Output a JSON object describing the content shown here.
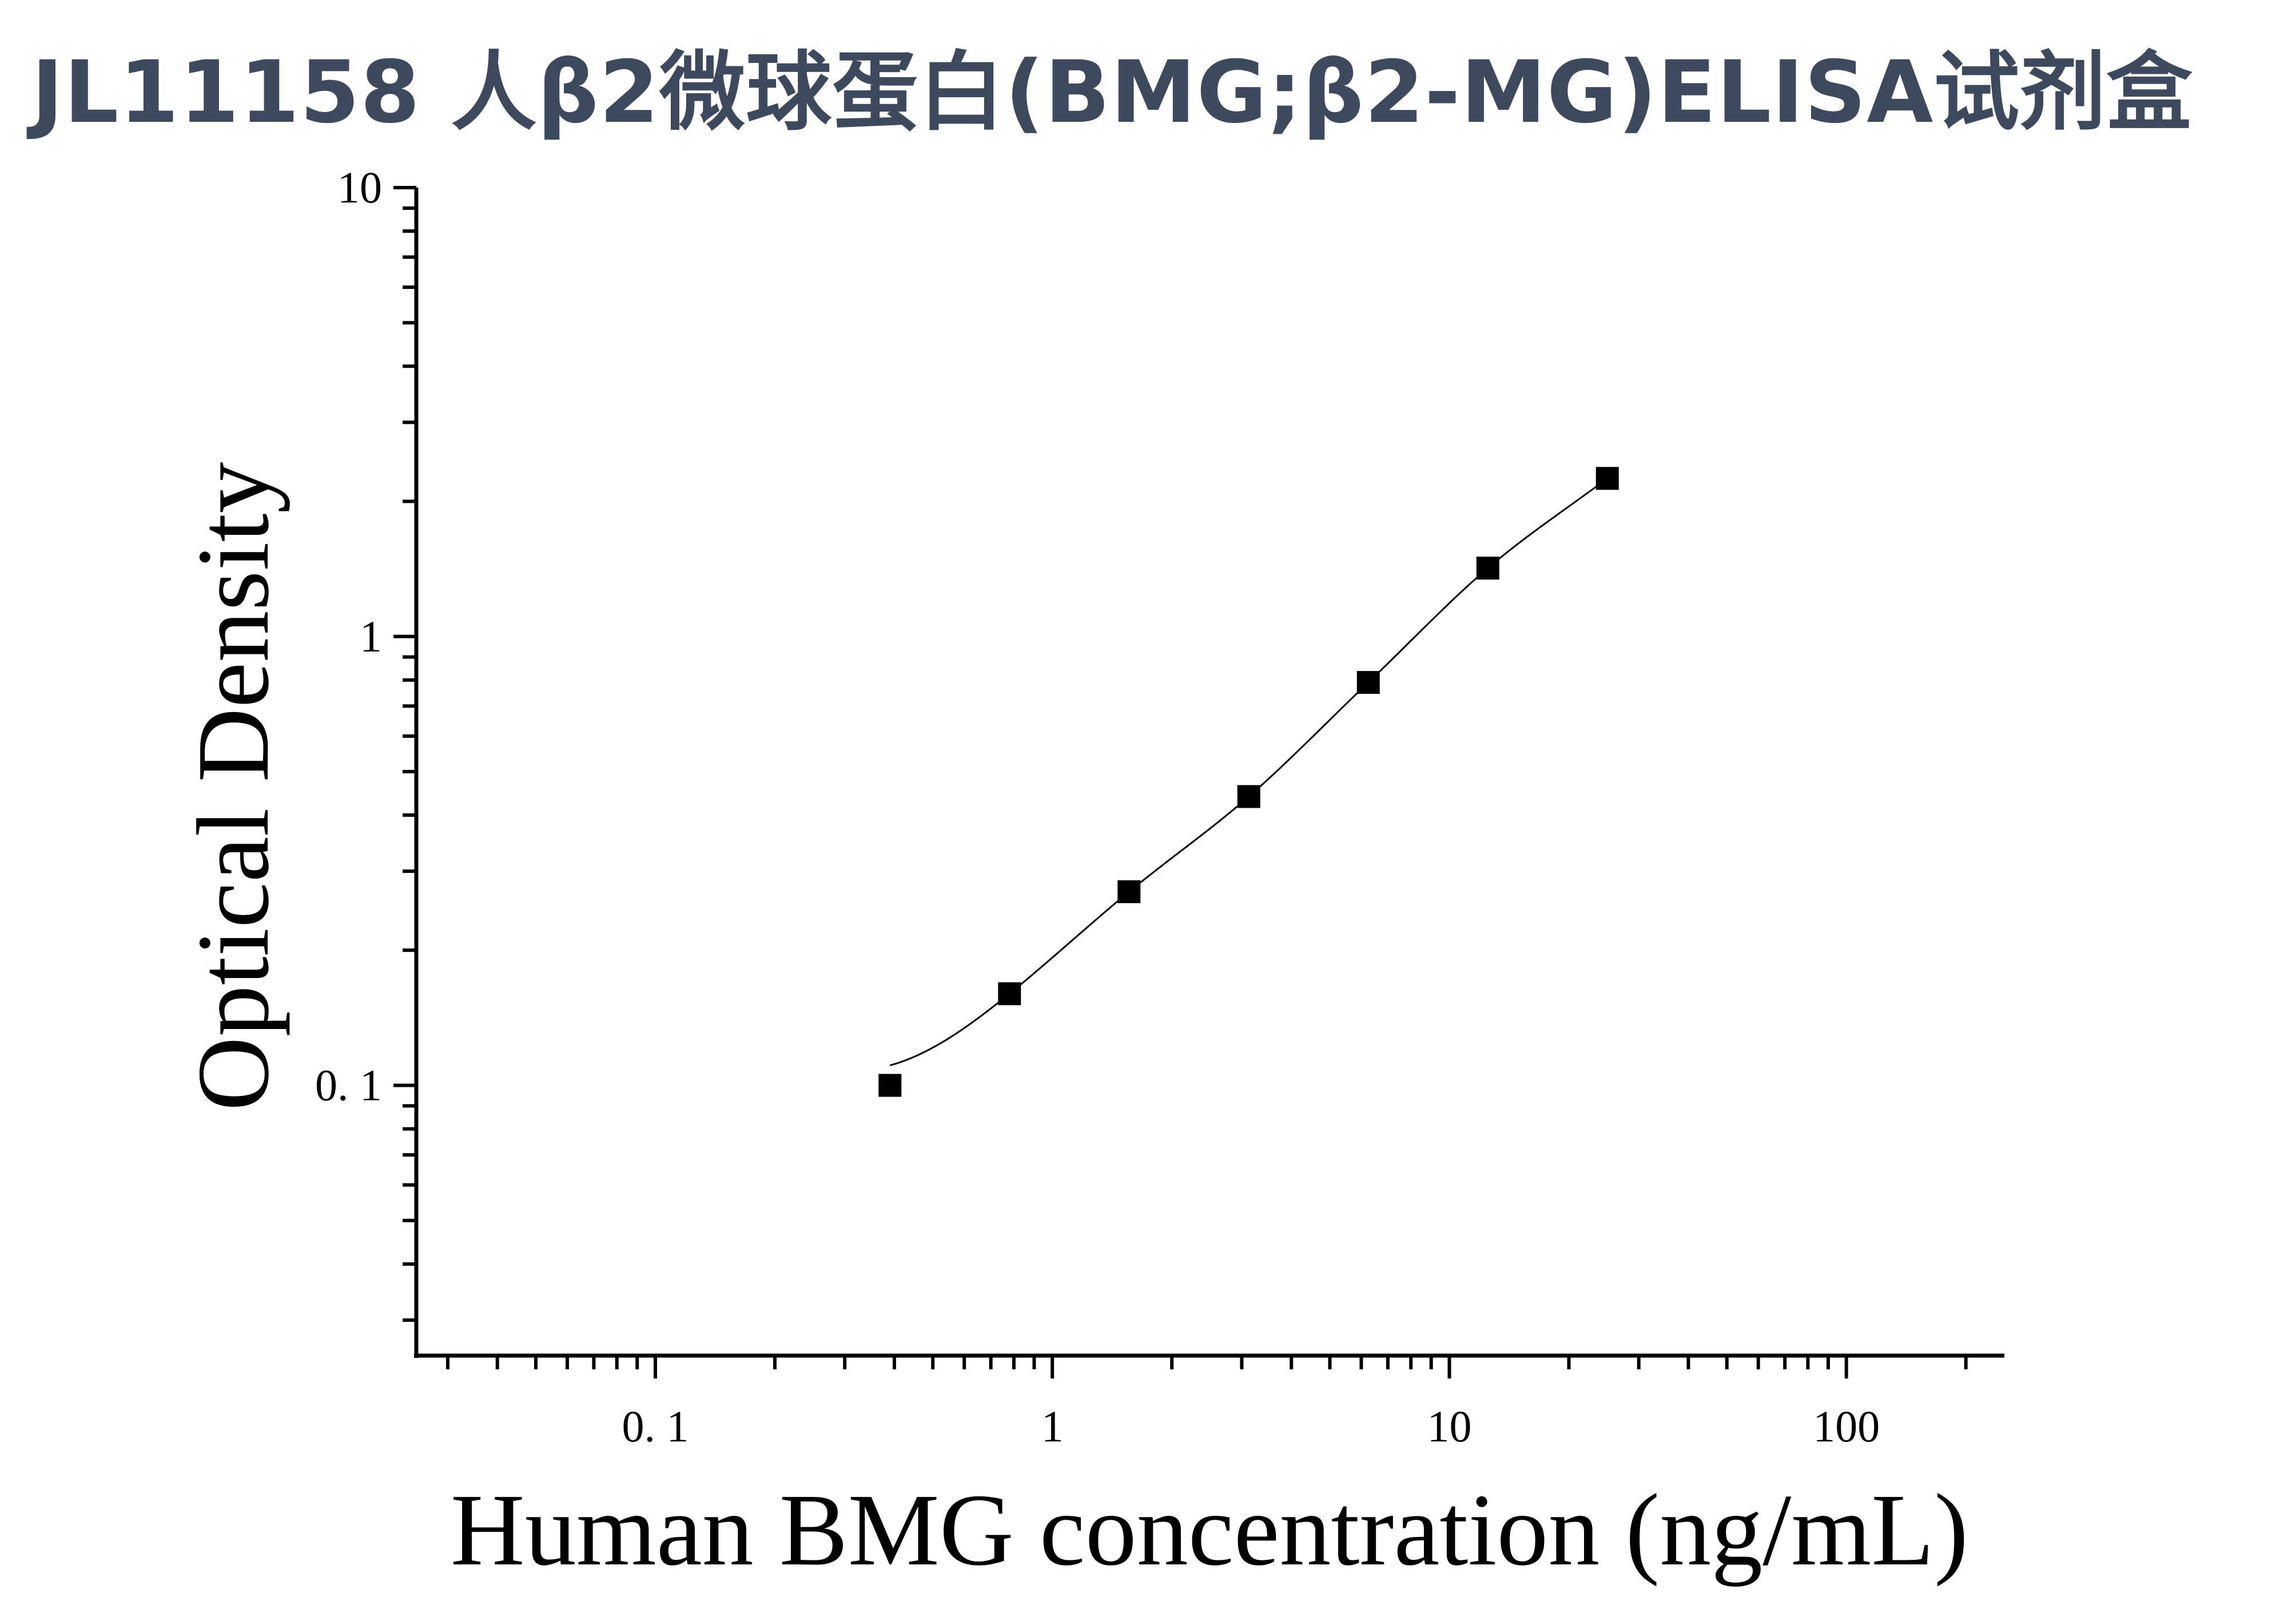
{
  "title": "JL11158 人β2微球蛋白(BMG;β2-MG)ELISA试剂盒",
  "chart_data": {
    "type": "scatter",
    "xlabel": "Human BMG concentration (ng/mL)",
    "ylabel": "Optical Density",
    "xscale": "log",
    "yscale": "log",
    "xlim": [
      0.025,
      250
    ],
    "ylim": [
      0.025,
      10
    ],
    "xticks": [
      0.1,
      1,
      10,
      100
    ],
    "xtick_labels": [
      "0. 1",
      "1",
      "10",
      "100"
    ],
    "yticks": [
      0.1,
      1,
      10
    ],
    "ytick_labels": [
      "0. 1",
      "1",
      "10"
    ],
    "series": [
      {
        "marker": "square",
        "x": [
          0.39,
          0.78,
          1.56,
          3.125,
          6.25,
          12.5,
          25
        ],
        "y": [
          0.1,
          0.16,
          0.27,
          0.44,
          0.79,
          1.42,
          2.25
        ]
      }
    ],
    "fit_curve": true,
    "color": "#000000",
    "grid": false
  }
}
